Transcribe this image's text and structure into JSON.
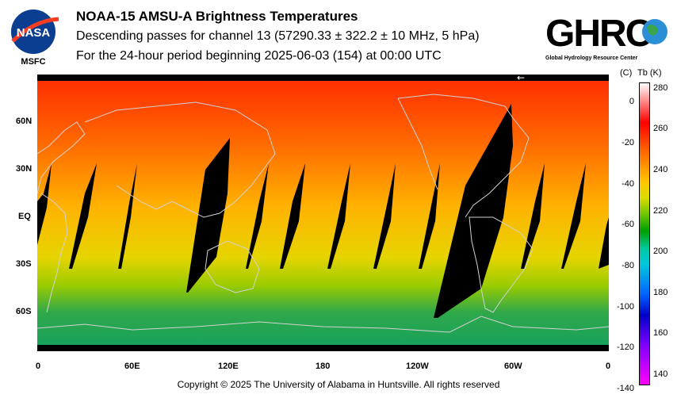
{
  "header": {
    "title": "NOAA-15 AMSU-A Brightness Temperatures",
    "subtitle": "Descending passes for channel 13 (57290.33 ± 322.2 ± 10 MHz, 5 hPa)",
    "period": "For the 24-hour period beginning 2025-06-03 (154) at 00:00 UTC"
  },
  "logos": {
    "nasa_text": "NASA",
    "nasa_center": "MSFC",
    "ghrc_text": "GHRC",
    "ghrc_tagline": "Global Hydrology Resource Center"
  },
  "map": {
    "lat_labels": [
      "60N",
      "30N",
      "EQ",
      "30S",
      "60S"
    ],
    "lon_labels": [
      "0",
      "60E",
      "120E",
      "180",
      "120W",
      "60W",
      "0"
    ],
    "arrow": "←",
    "colors": {
      "north": "#ff2a00",
      "tropics": "#ffb300",
      "south_mid": "#b8d400",
      "south": "#14a050",
      "gap": "#000000",
      "coast": "#c8c8c8"
    }
  },
  "colorbar": {
    "c_label": "(C)",
    "k_label": "Tb (K)",
    "celsius_ticks": [
      "0",
      "-20",
      "-40",
      "-60",
      "-80",
      "-100",
      "-120",
      "-140"
    ],
    "kelvin_ticks": [
      "280",
      "260",
      "240",
      "220",
      "200",
      "180",
      "160",
      "140"
    ],
    "celsius_values": [
      0,
      -20,
      -40,
      -60,
      -80,
      -100,
      -120,
      -140
    ],
    "kelvin_values": [
      280,
      260,
      240,
      220,
      200,
      180,
      160,
      140
    ],
    "k_range": [
      135,
      283
    ]
  },
  "footer": {
    "copyright": "Copyright © 2025 The University of Alabama in Huntsville.  All rights reserved"
  }
}
